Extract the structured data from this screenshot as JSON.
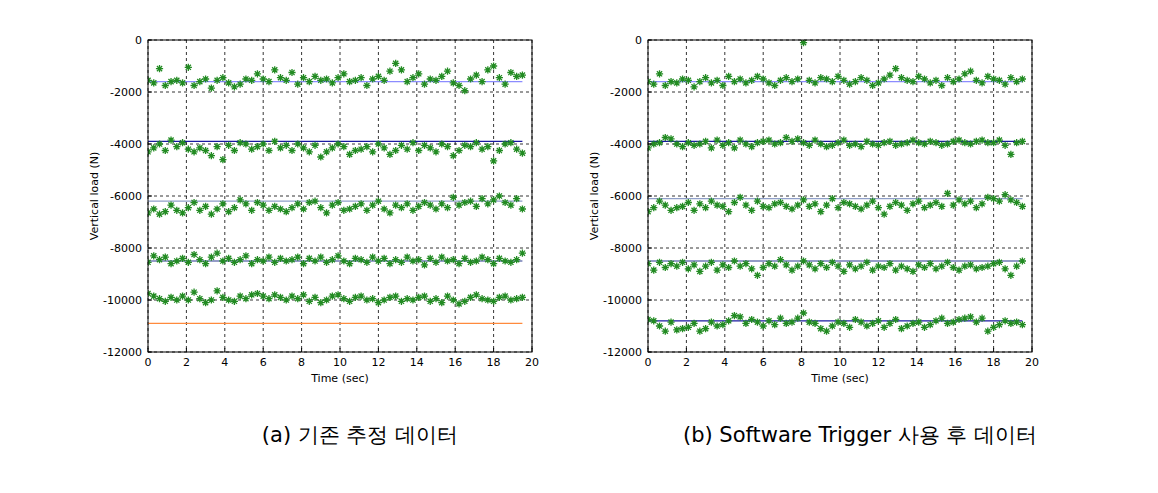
{
  "chart_data": [
    {
      "type": "scatter",
      "title": "(a) 기존 추정 데이터",
      "x_label": "Time (sec)",
      "y_label": "Vertical load (N)",
      "xlim": [
        0,
        20
      ],
      "xticks": [
        0,
        2,
        4,
        6,
        8,
        10,
        12,
        14,
        16,
        18,
        20
      ],
      "ylim": [
        -12000,
        0
      ],
      "yticks": [
        -12000,
        -10000,
        -8000,
        -6000,
        -4000,
        -2000,
        0
      ],
      "grid": true,
      "marker": "asterisk",
      "x": [
        0,
        0.3,
        0.6,
        0.9,
        1.2,
        1.5,
        1.8,
        2.1,
        2.4,
        2.7,
        3,
        3.3,
        3.6,
        3.9,
        4.2,
        4.5,
        4.8,
        5.1,
        5.4,
        5.7,
        6,
        6.3,
        6.6,
        6.9,
        7.2,
        7.5,
        7.8,
        8.1,
        8.4,
        8.7,
        9,
        9.3,
        9.6,
        9.9,
        10.2,
        10.5,
        10.8,
        11.1,
        11.4,
        11.7,
        12,
        12.3,
        12.6,
        12.9,
        13.2,
        13.5,
        13.8,
        14.1,
        14.4,
        14.7,
        15,
        15.3,
        15.6,
        15.9,
        16.2,
        16.5,
        16.8,
        17.1,
        17.4,
        17.7,
        18,
        18.3,
        18.6,
        18.9,
        19.2,
        19.5
      ],
      "series": [
        {
          "type": "line",
          "color": "#8c8cff",
          "x": [
            0,
            19.5
          ],
          "values": [
            -1600,
            -1600
          ]
        },
        {
          "type": "line",
          "color": "#1a1aa0",
          "x": [
            0,
            19.5
          ],
          "values": [
            -3900,
            -3900
          ]
        },
        {
          "type": "line",
          "color": "#8f9fc8",
          "x": [
            0,
            19.5
          ],
          "values": [
            -6200,
            -6200
          ]
        },
        {
          "type": "line",
          "color": "#2b3a8f",
          "x": [
            0,
            19.5
          ],
          "values": [
            -8500,
            -8500
          ]
        },
        {
          "type": "line",
          "color": "#ff8a3d",
          "x": [
            0,
            19.5
          ],
          "values": [
            -10900,
            -10900
          ]
        },
        {
          "type": "scatter",
          "color": "#228b22",
          "values": [
            -1550,
            -1650,
            -1100,
            -1750,
            -1600,
            -1550,
            -1650,
            -1050,
            -1750,
            -1600,
            -1500,
            -1850,
            -1550,
            -1450,
            -1650,
            -1800,
            -1700,
            -1500,
            -1550,
            -1300,
            -1500,
            -1600,
            -1150,
            -1450,
            -1550,
            -1250,
            -1700,
            -1450,
            -1600,
            -1400,
            -1550,
            -1500,
            -1650,
            -1450,
            -1300,
            -1600,
            -1550,
            -1450,
            -1750,
            -1500,
            -1400,
            -1550,
            -1200,
            -900,
            -1150,
            -1600,
            -1450,
            -1300,
            -1700,
            -1500,
            -1550,
            -1400,
            -1200,
            -1650,
            -1750,
            -1950,
            -1500,
            -1350,
            -1600,
            -1150,
            -1000,
            -1450,
            -1700,
            -1250,
            -1400,
            -1350
          ]
        },
        {
          "type": "scatter",
          "color": "#228b22",
          "values": [
            -4300,
            -4150,
            -4000,
            -4250,
            -3850,
            -4100,
            -3950,
            -4200,
            -4300,
            -4150,
            -4250,
            -4450,
            -4100,
            -4600,
            -4050,
            -4250,
            -3950,
            -4000,
            -4200,
            -4100,
            -4000,
            -4250,
            -3900,
            -4150,
            -4050,
            -4250,
            -4000,
            -4150,
            -4300,
            -4050,
            -4500,
            -4300,
            -4150,
            -4000,
            -4100,
            -4400,
            -4250,
            -4200,
            -4100,
            -4300,
            -4000,
            -4150,
            -4400,
            -4250,
            -4050,
            -4200,
            -3950,
            -4250,
            -4050,
            -4150,
            -4300,
            -4000,
            -4100,
            -4450,
            -4250,
            -4050,
            -4100,
            -3950,
            -4200,
            -4100,
            -4650,
            -4250,
            -4000,
            -3950,
            -4200,
            -4350
          ]
        },
        {
          "type": "scatter",
          "color": "#228b22",
          "values": [
            -6650,
            -6500,
            -6700,
            -6600,
            -6350,
            -6550,
            -6650,
            -6450,
            -6250,
            -6550,
            -6400,
            -6700,
            -6500,
            -6300,
            -6600,
            -6450,
            -6150,
            -6300,
            -6550,
            -6250,
            -6350,
            -6550,
            -6400,
            -6500,
            -6600,
            -6450,
            -6300,
            -6500,
            -6250,
            -6200,
            -6450,
            -6650,
            -6350,
            -6250,
            -6550,
            -6500,
            -6400,
            -6300,
            -6550,
            -6350,
            -6200,
            -6500,
            -6650,
            -6350,
            -6450,
            -6300,
            -6550,
            -6400,
            -6250,
            -6350,
            -6500,
            -6300,
            -6450,
            -6050,
            -6350,
            -6250,
            -6200,
            -6400,
            -6100,
            -6300,
            -6150,
            -6000,
            -6250,
            -6350,
            -6100,
            -6500
          ]
        },
        {
          "type": "scatter",
          "color": "#228b22",
          "values": [
            -8550,
            -8300,
            -8450,
            -8350,
            -8600,
            -8500,
            -8400,
            -8550,
            -8250,
            -8450,
            -8600,
            -8350,
            -8200,
            -8500,
            -8400,
            -8550,
            -8450,
            -8300,
            -8600,
            -8450,
            -8500,
            -8350,
            -8550,
            -8400,
            -8500,
            -8450,
            -8350,
            -8600,
            -8400,
            -8500,
            -8350,
            -8550,
            -8450,
            -8300,
            -8500,
            -8600,
            -8400,
            -8450,
            -8550,
            -8350,
            -8500,
            -8400,
            -8600,
            -8450,
            -8550,
            -8350,
            -8500,
            -8450,
            -8650,
            -8400,
            -8550,
            -8350,
            -8500,
            -8450,
            -8600,
            -8400,
            -8550,
            -8500,
            -8350,
            -8450,
            -8600,
            -8400,
            -8500,
            -8550,
            -8450,
            -8200
          ]
        },
        {
          "type": "scatter",
          "color": "#228b22",
          "values": [
            -9750,
            -9850,
            -9950,
            -10050,
            -9900,
            -10000,
            -9850,
            -10000,
            -9700,
            -9950,
            -10100,
            -10000,
            -9650,
            -9900,
            -10000,
            -10050,
            -9850,
            -9950,
            -9800,
            -9750,
            -9850,
            -9950,
            -9800,
            -9900,
            -10000,
            -9850,
            -9950,
            -9800,
            -10050,
            -9900,
            -10100,
            -10000,
            -9850,
            -9800,
            -9950,
            -10050,
            -9900,
            -9850,
            -10000,
            -9950,
            -10100,
            -10000,
            -9900,
            -9850,
            -10050,
            -9950,
            -10000,
            -9900,
            -9850,
            -10050,
            -9950,
            -10100,
            -9850,
            -10000,
            -10150,
            -10050,
            -9900,
            -9800,
            -9950,
            -10000,
            -10050,
            -9900,
            -9850,
            -10000,
            -9950,
            -9900
          ]
        }
      ]
    },
    {
      "type": "scatter",
      "title": "(b) Software Trigger 사용 후 데이터",
      "x_label": "Time (sec)",
      "y_label": "Vertical load (N)",
      "xlim": [
        0,
        20
      ],
      "xticks": [
        0,
        2,
        4,
        6,
        8,
        10,
        12,
        14,
        16,
        18,
        20
      ],
      "ylim": [
        -12000,
        0
      ],
      "yticks": [
        -12000,
        -10000,
        -8000,
        -6000,
        -4000,
        -2000,
        0
      ],
      "grid": true,
      "marker": "asterisk",
      "x": [
        0,
        0.3,
        0.6,
        0.9,
        1.2,
        1.5,
        1.8,
        2.1,
        2.4,
        2.7,
        3,
        3.3,
        3.6,
        3.9,
        4.2,
        4.5,
        4.8,
        5.1,
        5.4,
        5.7,
        6,
        6.3,
        6.6,
        6.9,
        7.2,
        7.5,
        7.8,
        8.1,
        8.4,
        8.7,
        9,
        9.3,
        9.6,
        9.9,
        10.2,
        10.5,
        10.8,
        11.1,
        11.4,
        11.7,
        12,
        12.3,
        12.6,
        12.9,
        13.2,
        13.5,
        13.8,
        14.1,
        14.4,
        14.7,
        15,
        15.3,
        15.6,
        15.9,
        16.2,
        16.5,
        16.8,
        17.1,
        17.4,
        17.7,
        18,
        18.3,
        18.6,
        18.9,
        19.2,
        19.5
      ],
      "series": [
        {
          "type": "line",
          "color": "#8c8cff",
          "x": [
            0,
            19.5
          ],
          "values": [
            -1600,
            -1600
          ]
        },
        {
          "type": "line",
          "color": "#1a1aa0",
          "x": [
            0,
            19.5
          ],
          "values": [
            -3900,
            -3900
          ]
        },
        {
          "type": "line",
          "color": "#8f9fc8",
          "x": [
            0,
            19.5
          ],
          "values": [
            -6100,
            -6100
          ]
        },
        {
          "type": "line",
          "color": "#2b3a8f",
          "x": [
            0,
            19.5
          ],
          "values": [
            -8500,
            -8500
          ]
        },
        {
          "type": "line",
          "color": "#1a1aa0",
          "x": [
            0,
            19.5
          ],
          "values": [
            -10800,
            -10800
          ]
        },
        {
          "type": "scatter",
          "color": "#228b22",
          "values": [
            -1600,
            -1700,
            -1300,
            -1750,
            -1600,
            -1650,
            -1500,
            -1550,
            -1800,
            -1600,
            -1450,
            -1650,
            -1550,
            -1750,
            -1400,
            -1600,
            -1500,
            -1650,
            -1550,
            -1400,
            -1500,
            -1650,
            -1750,
            -1550,
            -1450,
            -1600,
            -1500,
            -100,
            -1550,
            -1650,
            -1450,
            -1500,
            -1600,
            -1400,
            -1550,
            -1700,
            -1600,
            -1450,
            -1550,
            -1750,
            -1650,
            -1500,
            -1350,
            -1100,
            -1450,
            -1550,
            -1600,
            -1400,
            -1500,
            -1650,
            -1550,
            -1750,
            -1450,
            -1600,
            -1500,
            -1300,
            -1200,
            -1550,
            -1650,
            -1400,
            -1500,
            -1550,
            -1700,
            -1450,
            -1600,
            -1500
          ]
        },
        {
          "type": "scatter",
          "color": "#228b22",
          "values": [
            -4150,
            -4000,
            -3950,
            -3750,
            -3800,
            -4000,
            -4100,
            -3950,
            -4050,
            -4000,
            -3900,
            -4150,
            -3850,
            -4050,
            -3950,
            -4150,
            -3850,
            -4000,
            -4100,
            -3950,
            -3900,
            -3850,
            -4000,
            -3950,
            -3750,
            -3900,
            -3800,
            -3950,
            -4050,
            -3850,
            -4000,
            -4100,
            -4050,
            -3950,
            -3850,
            -4050,
            -4000,
            -4100,
            -3900,
            -4000,
            -4050,
            -3950,
            -3900,
            -4050,
            -4000,
            -3950,
            -3850,
            -3950,
            -4000,
            -3900,
            -3950,
            -4050,
            -4000,
            -3900,
            -3850,
            -3950,
            -4000,
            -3900,
            -3850,
            -3950,
            -3950,
            -3850,
            -4050,
            -4400,
            -3950,
            -3900
          ]
        },
        {
          "type": "scatter",
          "color": "#228b22",
          "values": [
            -6600,
            -6450,
            -6200,
            -6350,
            -6550,
            -6450,
            -6400,
            -6250,
            -6550,
            -6300,
            -6450,
            -6200,
            -6350,
            -6400,
            -6600,
            -6250,
            -6050,
            -6350,
            -6550,
            -6200,
            -6400,
            -6450,
            -6300,
            -6250,
            -6400,
            -6500,
            -6350,
            -6150,
            -6400,
            -6300,
            -6600,
            -6350,
            -6100,
            -6450,
            -6250,
            -6300,
            -6400,
            -6500,
            -6350,
            -6200,
            -6450,
            -6700,
            -6400,
            -6250,
            -6350,
            -6550,
            -6300,
            -6200,
            -6450,
            -6350,
            -6250,
            -6400,
            -5900,
            -6350,
            -6150,
            -6300,
            -6200,
            -6450,
            -6300,
            -6050,
            -6100,
            -6200,
            -5950,
            -6150,
            -6250,
            -6400
          ]
        },
        {
          "type": "scatter",
          "color": "#228b22",
          "values": [
            -8600,
            -8850,
            -8550,
            -8750,
            -8600,
            -8700,
            -8550,
            -8800,
            -8650,
            -8900,
            -8700,
            -8550,
            -8850,
            -8650,
            -8750,
            -8500,
            -8700,
            -8600,
            -8800,
            -9050,
            -8750,
            -8600,
            -8700,
            -8450,
            -8650,
            -8850,
            -8700,
            -8500,
            -8650,
            -8800,
            -8600,
            -8750,
            -8550,
            -8700,
            -8900,
            -8650,
            -8800,
            -8700,
            -8550,
            -8850,
            -8700,
            -8750,
            -8600,
            -8850,
            -8700,
            -8800,
            -8900,
            -8650,
            -8750,
            -8600,
            -8800,
            -8700,
            -8550,
            -8750,
            -8850,
            -8700,
            -8650,
            -8800,
            -8750,
            -8700,
            -8600,
            -8550,
            -8800,
            -9050,
            -8700,
            -8500
          ]
        },
        {
          "type": "scatter",
          "color": "#228b22",
          "values": [
            -10750,
            -10800,
            -11000,
            -11200,
            -10850,
            -11150,
            -11100,
            -11050,
            -10900,
            -11200,
            -11100,
            -10850,
            -11000,
            -10950,
            -10800,
            -10600,
            -10650,
            -10900,
            -10750,
            -10850,
            -11000,
            -10800,
            -10950,
            -10700,
            -10900,
            -10850,
            -10700,
            -10500,
            -10850,
            -10900,
            -11100,
            -11200,
            -11000,
            -10850,
            -10900,
            -11050,
            -10750,
            -10850,
            -11000,
            -10900,
            -10800,
            -11050,
            -10900,
            -10750,
            -11100,
            -11000,
            -10900,
            -10850,
            -11050,
            -10950,
            -10800,
            -10700,
            -10900,
            -10850,
            -10750,
            -10700,
            -10650,
            -10850,
            -10700,
            -11200,
            -11050,
            -10950,
            -10800,
            -10900,
            -10850,
            -10950
          ]
        }
      ]
    }
  ]
}
